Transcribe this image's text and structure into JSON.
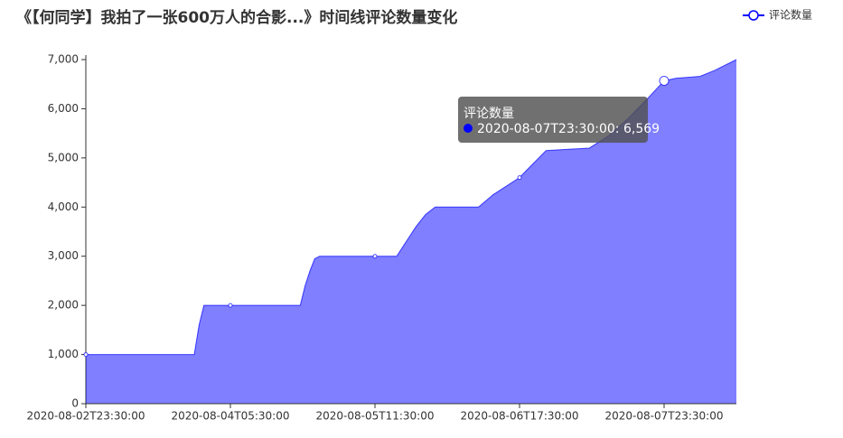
{
  "chart_data": {
    "type": "area",
    "title": "《【何同学】我拍了一张600万人的合影...》时间线评论数量变化",
    "x": [
      "2020-08-02T23:30:00",
      "2020-08-03T22:00:00",
      "2020-08-03T23:00:00",
      "2020-08-04T00:00:00",
      "2020-08-04T05:30:00",
      "2020-08-04T20:00:00",
      "2020-08-04T21:00:00",
      "2020-08-04T22:00:00",
      "2020-08-04T23:00:00",
      "2020-08-05T00:00:00",
      "2020-08-05T11:30:00",
      "2020-08-05T16:00:00",
      "2020-08-05T18:00:00",
      "2020-08-05T20:00:00",
      "2020-08-05T22:00:00",
      "2020-08-06T00:00:00",
      "2020-08-06T09:00:00",
      "2020-08-06T12:00:00",
      "2020-08-06T17:30:00",
      "2020-08-06T20:00:00",
      "2020-08-06T23:00:00",
      "2020-08-07T08:00:00",
      "2020-08-07T12:00:00",
      "2020-08-07T16:00:00",
      "2020-08-07T20:00:00",
      "2020-08-07T23:30:00",
      "2020-08-08T02:00:00",
      "2020-08-08T07:00:00",
      "2020-08-08T10:00:00",
      "2020-08-08T14:30:00"
    ],
    "series": [
      {
        "name": "评论数量",
        "color": "#0000ff",
        "values": [
          1000,
          1000,
          1600,
          2000,
          2000,
          2000,
          2400,
          2700,
          2950,
          3000,
          3000,
          3000,
          3300,
          3600,
          3850,
          4000,
          4000,
          4250,
          4600,
          4850,
          5150,
          5200,
          5450,
          5800,
          6200,
          6569,
          6620,
          6660,
          6780,
          7000
        ]
      }
    ],
    "xlim": [
      "2020-08-02T23:30:00",
      "2020-08-08T14:30:00"
    ],
    "xticks": [
      "2020-08-02T23:30:00",
      "2020-08-04T05:30:00",
      "2020-08-05T11:30:00",
      "2020-08-06T17:30:00",
      "2020-08-07T23:30:00"
    ],
    "ylim": [
      0,
      7000
    ],
    "yticks": [
      0,
      {
        "value": 1000,
        "label": "1,000"
      },
      {
        "value": 2000,
        "label": "2,000"
      },
      {
        "value": 3000,
        "label": "3,000"
      },
      {
        "value": 4000,
        "label": "4,000"
      },
      {
        "value": 5000,
        "label": "5,000"
      },
      {
        "value": 6000,
        "label": "6,000"
      },
      {
        "value": 7000,
        "label": "7,000"
      }
    ],
    "legend_position": "top-right",
    "tooltip": {
      "title": "评论数量",
      "text": "2020-08-07T23:30:00: 6,569"
    }
  }
}
